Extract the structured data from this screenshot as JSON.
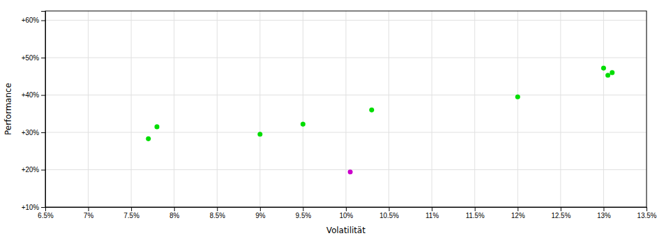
{
  "chart_data": {
    "type": "scatter",
    "xlabel": "Volatilität",
    "ylabel": "Performance",
    "xlim": [
      0.065,
      0.135
    ],
    "ylim": [
      0.1,
      0.625
    ],
    "xticks": [
      {
        "value": 0.065,
        "label": "6.5%"
      },
      {
        "value": 0.07,
        "label": "7%"
      },
      {
        "value": 0.075,
        "label": "7.5%"
      },
      {
        "value": 0.08,
        "label": "8%"
      },
      {
        "value": 0.085,
        "label": "8.5%"
      },
      {
        "value": 0.09,
        "label": "9%"
      },
      {
        "value": 0.095,
        "label": "9.5%"
      },
      {
        "value": 0.1,
        "label": "10%"
      },
      {
        "value": 0.105,
        "label": "10.5%"
      },
      {
        "value": 0.11,
        "label": "11%"
      },
      {
        "value": 0.115,
        "label": "11.5%"
      },
      {
        "value": 0.12,
        "label": "12%"
      },
      {
        "value": 0.125,
        "label": "12.5%"
      },
      {
        "value": 0.13,
        "label": "13%"
      },
      {
        "value": 0.135,
        "label": "13.5%"
      }
    ],
    "yticks": [
      {
        "value": 0.1,
        "label": "+10%"
      },
      {
        "value": 0.2,
        "label": "+20%"
      },
      {
        "value": 0.3,
        "label": "+30%"
      },
      {
        "value": 0.4,
        "label": "+40%"
      },
      {
        "value": 0.5,
        "label": "+50%"
      },
      {
        "value": 0.6,
        "label": "+60%"
      }
    ],
    "grid": true,
    "marker": "circle",
    "series": [
      {
        "color": "#00dd00",
        "x": [
          0.078,
          0.077,
          0.09,
          0.095,
          0.103,
          0.12,
          0.13,
          0.131,
          0.1305
        ],
        "values": [
          0.315,
          0.283,
          0.295,
          0.322,
          0.36,
          0.395,
          0.472,
          0.46,
          0.453
        ]
      },
      {
        "color": "#cc00cc",
        "x": [
          0.1005
        ],
        "values": [
          0.194
        ]
      }
    ]
  }
}
